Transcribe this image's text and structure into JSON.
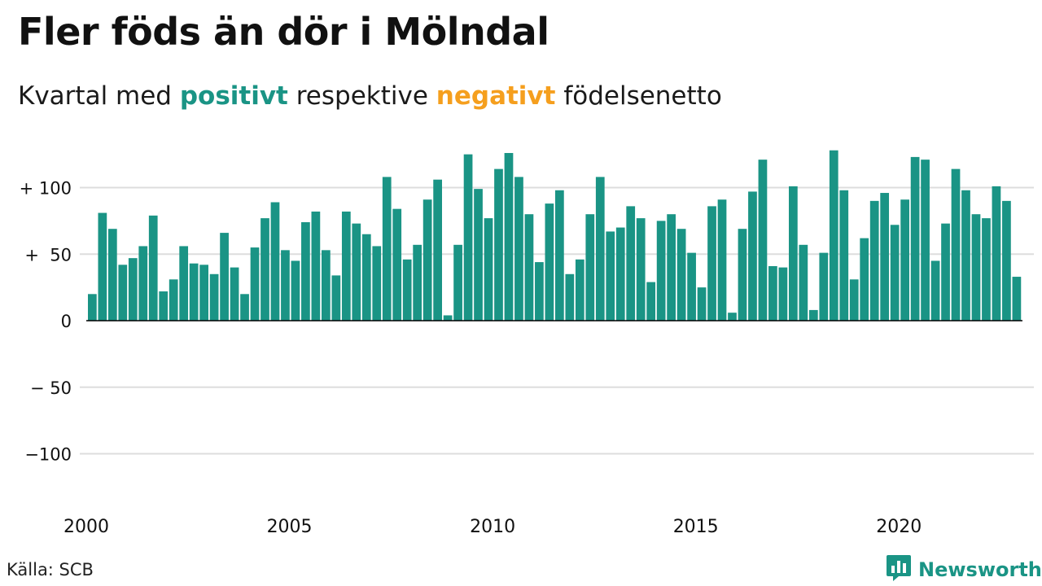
{
  "title": "Fler föds än dör i Mölndal",
  "subtitle": {
    "prefix": "Kvartal med ",
    "positive": "positivt",
    "middle": " respektive ",
    "negative": "negativt",
    "suffix": " födelsenetto"
  },
  "source": "Källa: SCB",
  "brand": {
    "name": "Newsworthy",
    "icon": "newsworthy-logo-icon"
  },
  "colors": {
    "positive": "#1a9485",
    "negative": "#f59f1e",
    "grid": "#dddddd",
    "axis": "#000000"
  },
  "chart_data": {
    "type": "bar",
    "x_start": "2000 Q1",
    "x_ticks": [
      "2000",
      "2005",
      "2010",
      "2015",
      "2020"
    ],
    "y_ticks": [
      "+ 100",
      "+  50",
      "0",
      "− 50",
      "−100"
    ],
    "y_tick_values": [
      100,
      50,
      0,
      -50,
      -100
    ],
    "ylim": [
      -125,
      135
    ],
    "grid": true,
    "values": [
      20,
      81,
      69,
      42,
      47,
      56,
      79,
      22,
      31,
      56,
      43,
      42,
      35,
      66,
      40,
      20,
      55,
      77,
      89,
      53,
      45,
      74,
      82,
      53,
      34,
      82,
      73,
      65,
      56,
      108,
      84,
      46,
      57,
      91,
      106,
      4,
      57,
      125,
      99,
      77,
      114,
      126,
      108,
      80,
      44,
      88,
      98,
      35,
      46,
      80,
      108,
      67,
      70,
      86,
      77,
      29,
      75,
      80,
      69,
      51,
      25,
      86,
      91,
      6,
      69,
      97,
      121,
      41,
      40,
      101,
      57,
      8,
      51,
      128,
      98,
      31,
      62,
      90,
      96,
      72,
      91,
      123,
      121,
      45,
      73,
      114,
      98,
      80,
      77,
      101,
      90,
      33
    ]
  }
}
